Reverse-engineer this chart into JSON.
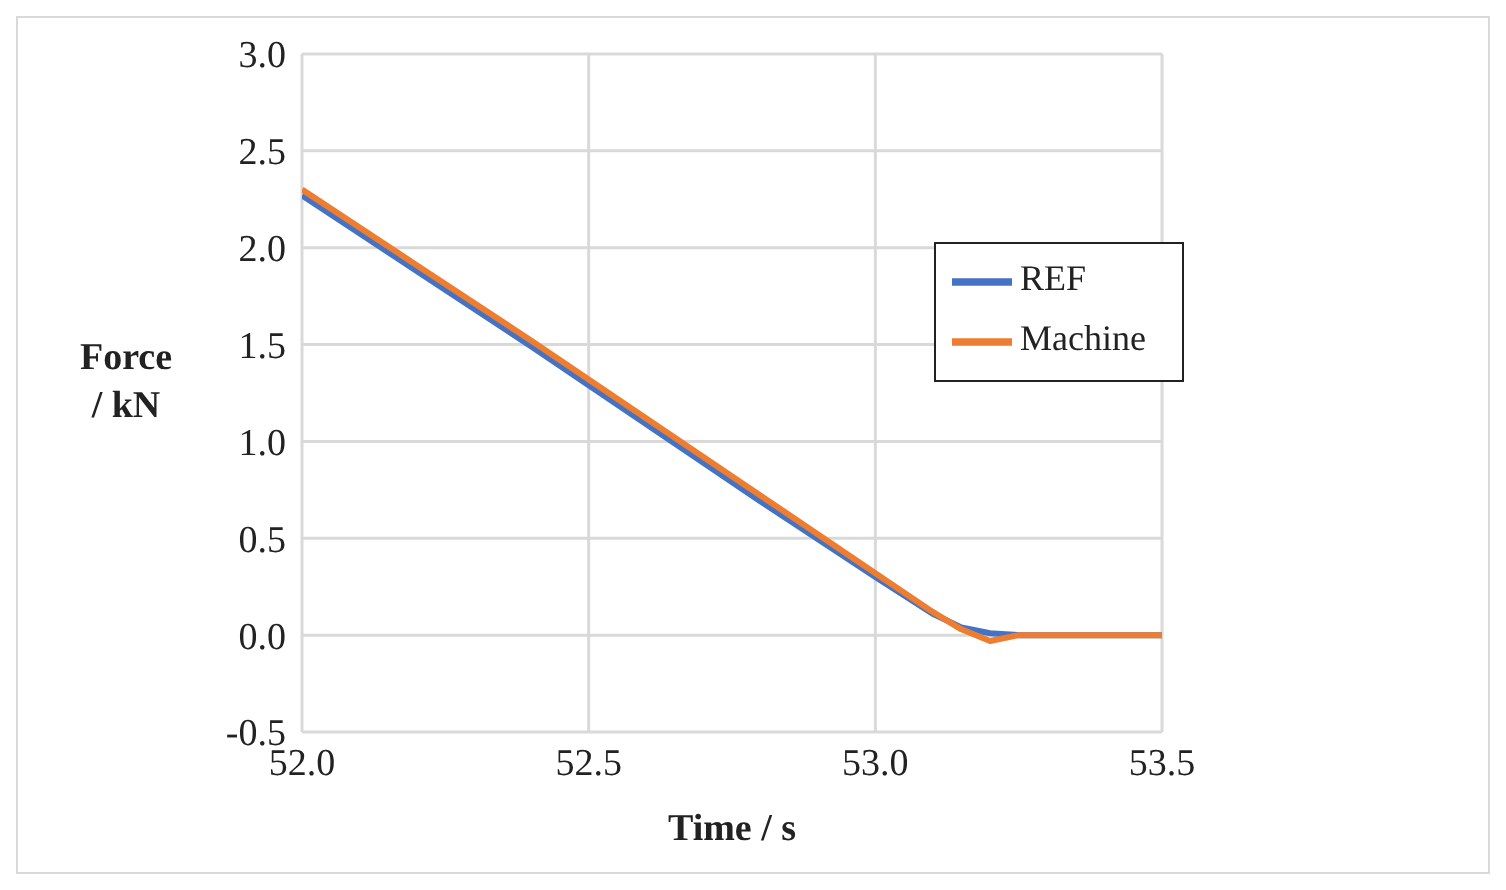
{
  "chart_data": {
    "type": "line",
    "xlabel": "Time / s",
    "ylabel": "Force / kN",
    "x": [
      52.0,
      52.2,
      52.4,
      52.6,
      52.8,
      53.0,
      53.1,
      53.15,
      53.2,
      53.25,
      53.5
    ],
    "series": [
      {
        "name": "REF",
        "color": "#4472c4",
        "values": [
          2.27,
          1.88,
          1.49,
          1.09,
          0.69,
          0.3,
          0.11,
          0.04,
          0.01,
          0,
          0
        ]
      },
      {
        "name": "Machine",
        "color": "#ed7d31",
        "values": [
          2.3,
          1.91,
          1.52,
          1.12,
          0.72,
          0.32,
          0.12,
          0.03,
          -0.03,
          0,
          0
        ]
      }
    ],
    "xlim": [
      52.0,
      53.5
    ],
    "xticks": [
      {
        "value": 52.0,
        "label": "52.0"
      },
      {
        "value": 52.5,
        "label": "52.5"
      },
      {
        "value": 53.0,
        "label": "53.0"
      },
      {
        "value": 53.5,
        "label": "53.5"
      }
    ],
    "ylim": [
      -0.5,
      3.0
    ],
    "yticks": [
      {
        "value": -0.5,
        "label": "-0.5"
      },
      {
        "value": 0,
        "label": "0.0"
      },
      {
        "value": 0.5,
        "label": "0.5"
      },
      {
        "value": 1.0,
        "label": "1.0"
      },
      {
        "value": 1.5,
        "label": "1.5"
      },
      {
        "value": 2.0,
        "label": "2.0"
      },
      {
        "value": 2.5,
        "label": "2.5"
      },
      {
        "value": 3.0,
        "label": "3.0"
      }
    ],
    "grid": true,
    "legend": "top right",
    "marker": "none",
    "line_style": "solid"
  }
}
